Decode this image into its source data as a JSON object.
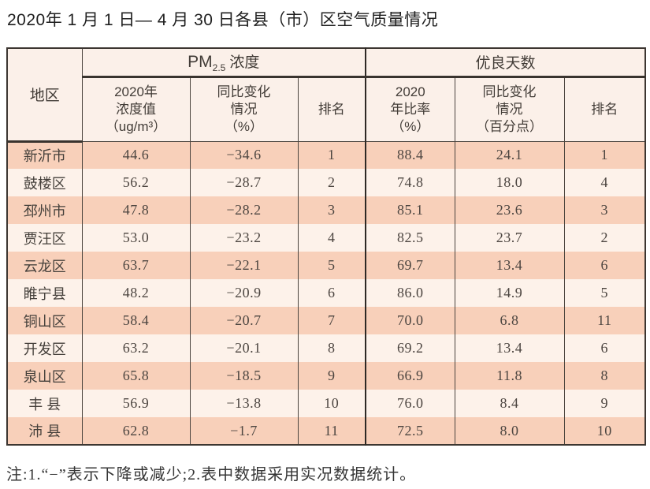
{
  "page": {
    "title": "2020年 1 月 1 日— 4 月 30 日各县（市）区空气质量情况",
    "note": "注:1.“−”表示下降或减少;2.表中数据采用实况数据统计。"
  },
  "colors": {
    "row_stripe_salmon": "#f8d0ba",
    "row_stripe_cream": "#fdf2ea",
    "header_background": "#fbf0e9",
    "table_border": "#3c3631",
    "text": "#4c4540"
  },
  "chart_data": {
    "type": "table",
    "title": "2020年 1 月 1 日— 4 月 30 日各县（市）区空气质量情况",
    "note": "注:1.“−”表示下降或减少;2.表中数据采用实况数据统计。",
    "header": {
      "region": "地区",
      "groups": [
        {
          "label_prefix": "PM",
          "label_sub": "2.5",
          "label_suffix": "浓度"
        },
        {
          "label": "优良天数"
        }
      ],
      "subcolumns": [
        {
          "lines": [
            "2020年",
            "浓度值",
            "（ug/m³）"
          ]
        },
        {
          "lines": [
            "同比变化",
            "情况",
            "（%）"
          ]
        },
        {
          "lines": [
            "排名"
          ]
        },
        {
          "lines": [
            "2020",
            "年比率",
            "（%）"
          ]
        },
        {
          "lines": [
            "同比变化",
            "情况",
            "（百分点）"
          ]
        },
        {
          "lines": [
            "排名"
          ]
        }
      ]
    },
    "columns": [
      "地区",
      "PM2.5浓度 2020年浓度值（ug/m³）",
      "PM2.5浓度 同比变化情况（%）",
      "PM2.5浓度 排名",
      "优良天数 2020年比率（%）",
      "优良天数 同比变化情况（百分点）",
      "优良天数 排名"
    ],
    "rows": [
      [
        "新沂市",
        "44.6",
        "−34.6",
        "1",
        "88.4",
        "24.1",
        "1"
      ],
      [
        "鼓楼区",
        "56.2",
        "−28.7",
        "2",
        "74.8",
        "18.0",
        "4"
      ],
      [
        "邳州市",
        "47.8",
        "−28.2",
        "3",
        "85.1",
        "23.6",
        "3"
      ],
      [
        "贾汪区",
        "53.0",
        "−23.2",
        "4",
        "82.5",
        "23.7",
        "2"
      ],
      [
        "云龙区",
        "63.7",
        "−22.1",
        "5",
        "69.7",
        "13.4",
        "6"
      ],
      [
        "睢宁县",
        "48.2",
        "−20.9",
        "6",
        "86.0",
        "14.9",
        "5"
      ],
      [
        "铜山区",
        "58.4",
        "−20.7",
        "7",
        "70.0",
        "6.8",
        "11"
      ],
      [
        "开发区",
        "63.2",
        "−20.1",
        "8",
        "69.2",
        "13.4",
        "6"
      ],
      [
        "泉山区",
        "65.8",
        "−18.5",
        "9",
        "66.9",
        "11.8",
        "8"
      ],
      [
        "丰 县",
        "56.9",
        "−13.8",
        "10",
        "76.0",
        "8.4",
        "9"
      ],
      [
        "沛 县",
        "62.8",
        "−1.7",
        "11",
        "72.5",
        "8.0",
        "10"
      ]
    ]
  }
}
